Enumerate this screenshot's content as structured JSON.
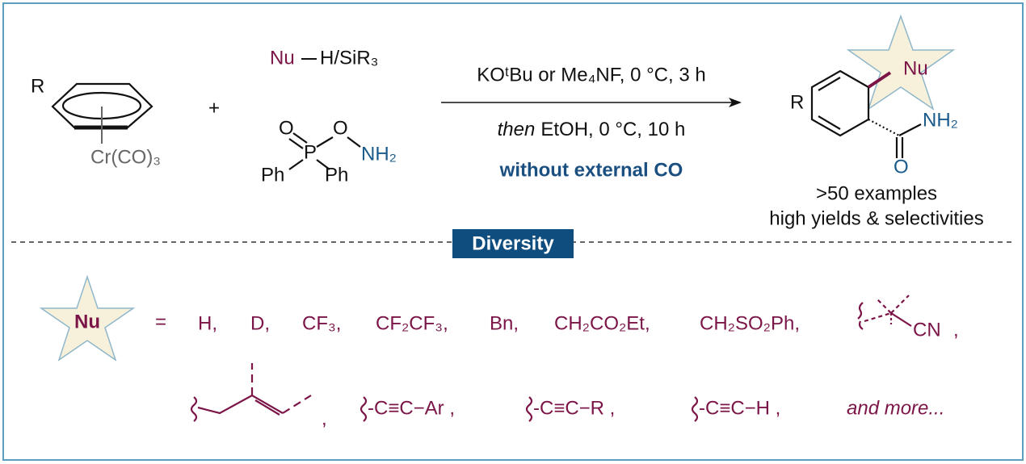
{
  "reactants": {
    "arene_substituent": "R",
    "arene_metal": "Cr(CO)₃",
    "plus": "+",
    "nucleophile": "Nu",
    "nucleophile_partner": "H/SiR₃",
    "aminating_agent": {
      "oxygen_double": "O",
      "phosphorus": "P",
      "oxygen": "O",
      "amine": "NH₂",
      "phenyl_left": "Ph",
      "phenyl_right": "Ph"
    }
  },
  "conditions": {
    "step1": "KOᵗBu or Me₄NF, 0 °C, 3 h",
    "step2_prefix": "then",
    "step2": "EtOH, 0 °C, 10 h",
    "note": "without external CO"
  },
  "product": {
    "substituent": "R",
    "nucleophile": "Nu",
    "amide_n": "NH₂",
    "amide_o": "O",
    "scope": ">50 examples",
    "selectivity": "high yields & selectivities"
  },
  "diversity": {
    "label": "Diversity",
    "star_label": "Nu",
    "equals": "=",
    "row1": [
      "H,",
      "D,",
      "CF₃,",
      "CF₂CF₃,",
      "Bn,",
      "CH₂CO₂Et,",
      "CH₂SO₂Ph,"
    ],
    "cyano": "CN",
    "cyano_comma": ",",
    "prenyl_comma": ",",
    "row2": [
      "-C≡C−Ar ,",
      "-C≡C−R ,",
      "-C≡C−H ,"
    ],
    "more": "and more..."
  }
}
